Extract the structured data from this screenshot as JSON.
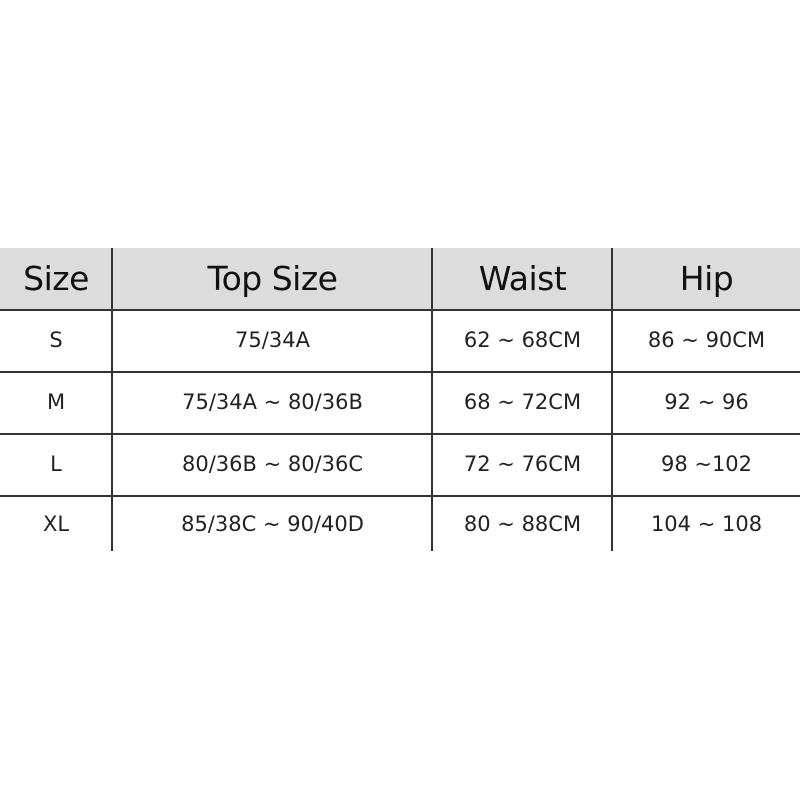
{
  "table": {
    "headers": [
      "Size",
      "Top Size",
      "Waist",
      "Hip"
    ],
    "rows": [
      [
        "S",
        "75/34A",
        "62 ~ 68CM",
        "86 ~ 90CM"
      ],
      [
        "M",
        "75/34A ~ 80/36B",
        "68 ~ 72CM",
        "92 ~ 96"
      ],
      [
        "L",
        "80/36B ~ 80/36C",
        "72 ~ 76CM",
        "98 ~102"
      ],
      [
        "XL",
        "85/38C ~ 90/40D",
        "80 ~ 88CM",
        "104 ~ 108"
      ]
    ],
    "header_color": "#dcdcdc",
    "grid_color": "#333333"
  }
}
